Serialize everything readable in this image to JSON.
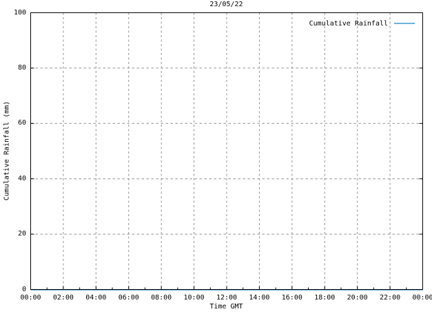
{
  "chart_data": {
    "type": "line",
    "title": "23/05/22",
    "xlabel": "Time GMT",
    "ylabel": "Cumulative Rainfall (mm)",
    "x_tick_labels": [
      "00:00",
      "02:00",
      "04:00",
      "06:00",
      "08:00",
      "10:00",
      "12:00",
      "14:00",
      "16:00",
      "18:00",
      "20:00",
      "22:00",
      "00:00"
    ],
    "x_tick_hours": [
      0,
      2,
      4,
      6,
      8,
      10,
      12,
      14,
      16,
      18,
      20,
      22,
      24
    ],
    "x_minor_tick_interval_hours": 1,
    "xlim_hours": [
      0,
      24
    ],
    "y_tick_labels": [
      "0",
      "20",
      "40",
      "60",
      "80",
      "100"
    ],
    "y_tick_values": [
      0,
      20,
      40,
      60,
      80,
      100
    ],
    "ylim": [
      0,
      100
    ],
    "grid": true,
    "legend_position": "top-right",
    "series": [
      {
        "name": "Cumulative Rainfall",
        "color": "#6db4e0",
        "x_hours": [
          0,
          24
        ],
        "values": [
          0,
          0
        ]
      }
    ]
  },
  "colors": {
    "background": "#ffffff",
    "axis": "#000000",
    "grid": "#909090",
    "text": "#000000",
    "series": "#6db4e0"
  }
}
